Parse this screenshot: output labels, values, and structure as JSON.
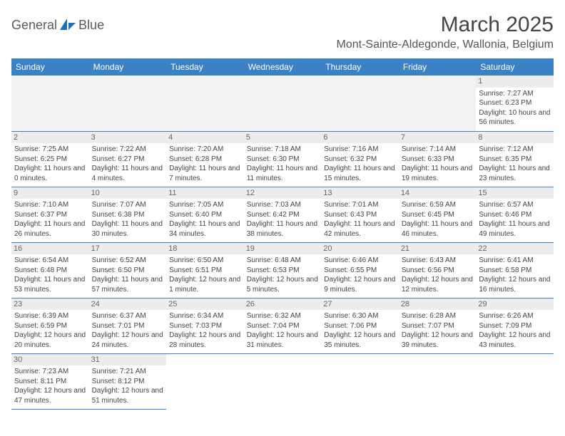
{
  "brand": {
    "name_a": "General",
    "name_b": "Blue"
  },
  "title": "March 2025",
  "location": "Mont-Sainte-Aldegonde, Wallonia, Belgium",
  "colors": {
    "header_bg": "#3b82c4",
    "header_fg": "#ffffff",
    "daynum_bg": "#ededed",
    "border": "#3b82c4",
    "text": "#444444"
  },
  "weekdays": [
    "Sunday",
    "Monday",
    "Tuesday",
    "Wednesday",
    "Thursday",
    "Friday",
    "Saturday"
  ],
  "weeks": [
    [
      null,
      null,
      null,
      null,
      null,
      null,
      {
        "n": "1",
        "sr": "Sunrise: 7:27 AM",
        "ss": "Sunset: 6:23 PM",
        "dl": "Daylight: 10 hours and 56 minutes."
      }
    ],
    [
      {
        "n": "2",
        "sr": "Sunrise: 7:25 AM",
        "ss": "Sunset: 6:25 PM",
        "dl": "Daylight: 11 hours and 0 minutes."
      },
      {
        "n": "3",
        "sr": "Sunrise: 7:22 AM",
        "ss": "Sunset: 6:27 PM",
        "dl": "Daylight: 11 hours and 4 minutes."
      },
      {
        "n": "4",
        "sr": "Sunrise: 7:20 AM",
        "ss": "Sunset: 6:28 PM",
        "dl": "Daylight: 11 hours and 7 minutes."
      },
      {
        "n": "5",
        "sr": "Sunrise: 7:18 AM",
        "ss": "Sunset: 6:30 PM",
        "dl": "Daylight: 11 hours and 11 minutes."
      },
      {
        "n": "6",
        "sr": "Sunrise: 7:16 AM",
        "ss": "Sunset: 6:32 PM",
        "dl": "Daylight: 11 hours and 15 minutes."
      },
      {
        "n": "7",
        "sr": "Sunrise: 7:14 AM",
        "ss": "Sunset: 6:33 PM",
        "dl": "Daylight: 11 hours and 19 minutes."
      },
      {
        "n": "8",
        "sr": "Sunrise: 7:12 AM",
        "ss": "Sunset: 6:35 PM",
        "dl": "Daylight: 11 hours and 23 minutes."
      }
    ],
    [
      {
        "n": "9",
        "sr": "Sunrise: 7:10 AM",
        "ss": "Sunset: 6:37 PM",
        "dl": "Daylight: 11 hours and 26 minutes."
      },
      {
        "n": "10",
        "sr": "Sunrise: 7:07 AM",
        "ss": "Sunset: 6:38 PM",
        "dl": "Daylight: 11 hours and 30 minutes."
      },
      {
        "n": "11",
        "sr": "Sunrise: 7:05 AM",
        "ss": "Sunset: 6:40 PM",
        "dl": "Daylight: 11 hours and 34 minutes."
      },
      {
        "n": "12",
        "sr": "Sunrise: 7:03 AM",
        "ss": "Sunset: 6:42 PM",
        "dl": "Daylight: 11 hours and 38 minutes."
      },
      {
        "n": "13",
        "sr": "Sunrise: 7:01 AM",
        "ss": "Sunset: 6:43 PM",
        "dl": "Daylight: 11 hours and 42 minutes."
      },
      {
        "n": "14",
        "sr": "Sunrise: 6:59 AM",
        "ss": "Sunset: 6:45 PM",
        "dl": "Daylight: 11 hours and 46 minutes."
      },
      {
        "n": "15",
        "sr": "Sunrise: 6:57 AM",
        "ss": "Sunset: 6:46 PM",
        "dl": "Daylight: 11 hours and 49 minutes."
      }
    ],
    [
      {
        "n": "16",
        "sr": "Sunrise: 6:54 AM",
        "ss": "Sunset: 6:48 PM",
        "dl": "Daylight: 11 hours and 53 minutes."
      },
      {
        "n": "17",
        "sr": "Sunrise: 6:52 AM",
        "ss": "Sunset: 6:50 PM",
        "dl": "Daylight: 11 hours and 57 minutes."
      },
      {
        "n": "18",
        "sr": "Sunrise: 6:50 AM",
        "ss": "Sunset: 6:51 PM",
        "dl": "Daylight: 12 hours and 1 minute."
      },
      {
        "n": "19",
        "sr": "Sunrise: 6:48 AM",
        "ss": "Sunset: 6:53 PM",
        "dl": "Daylight: 12 hours and 5 minutes."
      },
      {
        "n": "20",
        "sr": "Sunrise: 6:46 AM",
        "ss": "Sunset: 6:55 PM",
        "dl": "Daylight: 12 hours and 9 minutes."
      },
      {
        "n": "21",
        "sr": "Sunrise: 6:43 AM",
        "ss": "Sunset: 6:56 PM",
        "dl": "Daylight: 12 hours and 12 minutes."
      },
      {
        "n": "22",
        "sr": "Sunrise: 6:41 AM",
        "ss": "Sunset: 6:58 PM",
        "dl": "Daylight: 12 hours and 16 minutes."
      }
    ],
    [
      {
        "n": "23",
        "sr": "Sunrise: 6:39 AM",
        "ss": "Sunset: 6:59 PM",
        "dl": "Daylight: 12 hours and 20 minutes."
      },
      {
        "n": "24",
        "sr": "Sunrise: 6:37 AM",
        "ss": "Sunset: 7:01 PM",
        "dl": "Daylight: 12 hours and 24 minutes."
      },
      {
        "n": "25",
        "sr": "Sunrise: 6:34 AM",
        "ss": "Sunset: 7:03 PM",
        "dl": "Daylight: 12 hours and 28 minutes."
      },
      {
        "n": "26",
        "sr": "Sunrise: 6:32 AM",
        "ss": "Sunset: 7:04 PM",
        "dl": "Daylight: 12 hours and 31 minutes."
      },
      {
        "n": "27",
        "sr": "Sunrise: 6:30 AM",
        "ss": "Sunset: 7:06 PM",
        "dl": "Daylight: 12 hours and 35 minutes."
      },
      {
        "n": "28",
        "sr": "Sunrise: 6:28 AM",
        "ss": "Sunset: 7:07 PM",
        "dl": "Daylight: 12 hours and 39 minutes."
      },
      {
        "n": "29",
        "sr": "Sunrise: 6:26 AM",
        "ss": "Sunset: 7:09 PM",
        "dl": "Daylight: 12 hours and 43 minutes."
      }
    ],
    [
      {
        "n": "30",
        "sr": "Sunrise: 7:23 AM",
        "ss": "Sunset: 8:11 PM",
        "dl": "Daylight: 12 hours and 47 minutes."
      },
      {
        "n": "31",
        "sr": "Sunrise: 7:21 AM",
        "ss": "Sunset: 8:12 PM",
        "dl": "Daylight: 12 hours and 51 minutes."
      },
      null,
      null,
      null,
      null,
      null
    ]
  ]
}
